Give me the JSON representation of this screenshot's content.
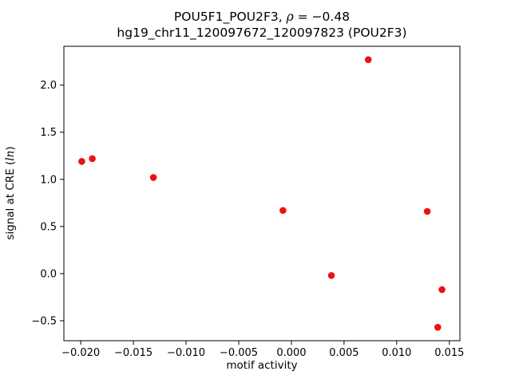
{
  "figure": {
    "title_line1_pre": "POU5F1_POU2F3, ",
    "title_line1_math": "ρ",
    "title_line1_post": " = −0.48",
    "title_line2": "hg19_chr11_120097672_120097823 (POU2F3)",
    "xlabel": "motif activity",
    "ylabel_pre": "signal at CRE (",
    "ylabel_math": "ln",
    "ylabel_post": ")"
  },
  "chart_data": {
    "type": "scatter",
    "title": "POU5F1_POU2F3, ρ = −0.48",
    "subtitle": "hg19_chr11_120097672_120097823 (POU2F3)",
    "xlabel": "motif activity",
    "ylabel": "signal at CRE (ln)",
    "legend": "none",
    "grid": false,
    "marker": "circle",
    "marker_color": "#ee1111",
    "xlim": [
      -0.0216,
      0.016
    ],
    "ylim": [
      -0.712,
      2.412
    ],
    "x_ticks": [
      -0.02,
      -0.015,
      -0.01,
      -0.005,
      0.0,
      0.005,
      0.01,
      0.015
    ],
    "x_tick_labels": [
      "−0.020",
      "−0.015",
      "−0.010",
      "−0.005",
      "0.000",
      "0.005",
      "0.010",
      "0.015"
    ],
    "y_ticks": [
      -0.5,
      0.0,
      0.5,
      1.0,
      1.5,
      2.0
    ],
    "y_tick_labels": [
      "−0.5",
      "0.0",
      "0.5",
      "1.0",
      "1.5",
      "2.0"
    ],
    "points": [
      {
        "x": -0.0199,
        "y": 1.19
      },
      {
        "x": -0.0189,
        "y": 1.22
      },
      {
        "x": -0.0131,
        "y": 1.02
      },
      {
        "x": -0.0008,
        "y": 0.67
      },
      {
        "x": 0.0038,
        "y": -0.02
      },
      {
        "x": 0.0073,
        "y": 2.27
      },
      {
        "x": 0.0129,
        "y": 0.66
      },
      {
        "x": 0.0143,
        "y": -0.17
      },
      {
        "x": 0.0139,
        "y": -0.57
      }
    ]
  }
}
